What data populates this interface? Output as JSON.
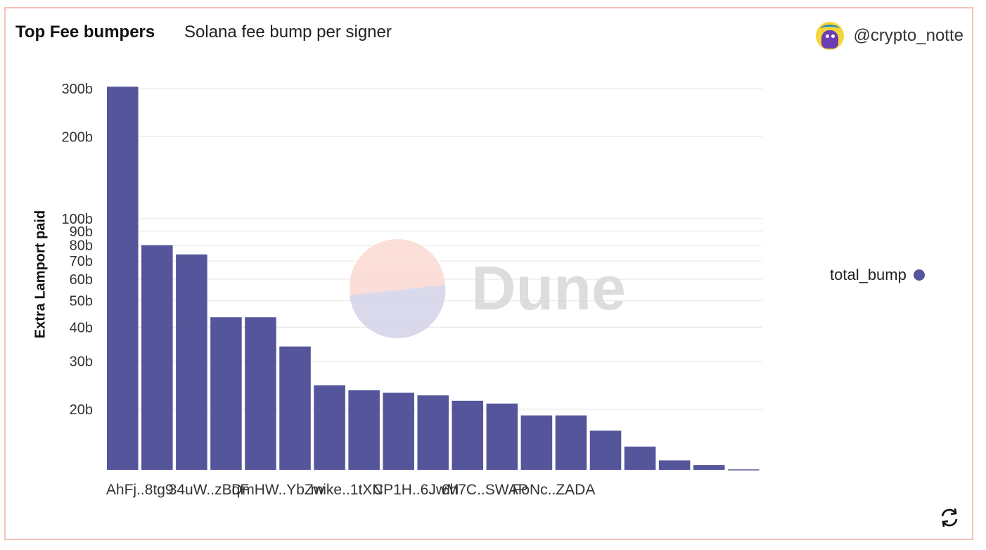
{
  "header": {
    "title": "Top Fee bumpers",
    "subtitle": "Solana fee bump per signer",
    "author": "@crypto_notte"
  },
  "watermark": "Dune",
  "colors": {
    "bar": "#55559b",
    "frame": "#f4c2b8",
    "grid": "#e6e6e6"
  },
  "icons": {
    "refresh": "refresh-icon",
    "avatar": "avatar-icon"
  },
  "chart_data": {
    "type": "bar",
    "ylabel": "Extra Lamport paid",
    "xlabel": "",
    "yscale": "log",
    "ylim": [
      12,
      330
    ],
    "yticks": [
      {
        "value": 20,
        "label": "20b"
      },
      {
        "value": 30,
        "label": "30b"
      },
      {
        "value": 40,
        "label": "40b"
      },
      {
        "value": 50,
        "label": "50b"
      },
      {
        "value": 60,
        "label": "60b"
      },
      {
        "value": 70,
        "label": "70b"
      },
      {
        "value": 80,
        "label": "80b"
      },
      {
        "value": 90,
        "label": "90b"
      },
      {
        "value": 100,
        "label": "100b"
      },
      {
        "value": 200,
        "label": "200b"
      },
      {
        "value": 300,
        "label": "300b"
      }
    ],
    "xtick_labels": [
      "AhFj..8tg9",
      "34uW..zBqF",
      "DmHW..YbZw",
      "mike..1tXN",
      "CP1H..6JwM",
      "6h7C..SWAP",
      "FoNc..ZADA"
    ],
    "series": [
      {
        "name": "total_bump",
        "values": [
          305,
          80,
          74,
          43.5,
          43.5,
          34,
          24.5,
          23.5,
          23,
          22.5,
          21.5,
          21,
          19,
          19,
          16.7,
          14.6,
          13,
          12.5,
          12
        ]
      }
    ],
    "legend_position": "right",
    "grid": true
  }
}
